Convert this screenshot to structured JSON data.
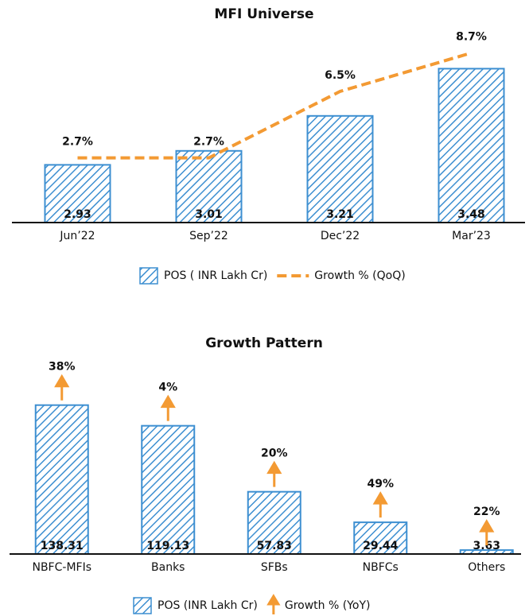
{
  "chart_data": [
    {
      "type": "bar",
      "title": "MFI Universe",
      "categories": [
        "Jun’22",
        "Sep’22",
        "Dec’22",
        "Mar’23"
      ],
      "series": [
        {
          "name": "POS ( INR Lakh Cr)",
          "color": "#3d8fd1",
          "values": [
            2.93,
            3.01,
            3.21,
            3.48
          ]
        },
        {
          "name": "Growth % (QoQ)",
          "type": "line",
          "axis": "y2",
          "color": "#f39a33",
          "values": [
            2.7,
            2.7,
            6.5,
            8.7
          ],
          "value_labels": [
            "2.7%",
            "2.7%",
            "6.5%",
            "8.7%"
          ]
        }
      ],
      "ylim": [
        2.6,
        3.6
      ],
      "y2lim": [
        -1,
        9
      ]
    },
    {
      "type": "bar",
      "title": "Growth Pattern",
      "categories": [
        "NBFC-MFIs",
        "Banks",
        "SFBs",
        "NBFCs",
        "Others"
      ],
      "series": [
        {
          "name": "POS (INR Lakh Cr)",
          "color": "#3d8fd1",
          "values": [
            138.31,
            119.13,
            57.83,
            29.44,
            3.63
          ]
        },
        {
          "name": "Growth % (YoY)",
          "type": "arrow",
          "color": "#f39a33",
          "values": [
            38,
            4,
            20,
            49,
            22
          ],
          "value_labels": [
            "38%",
            "4%",
            "20%",
            "49%",
            "22%"
          ]
        }
      ],
      "ylim": [
        0,
        175
      ]
    }
  ]
}
